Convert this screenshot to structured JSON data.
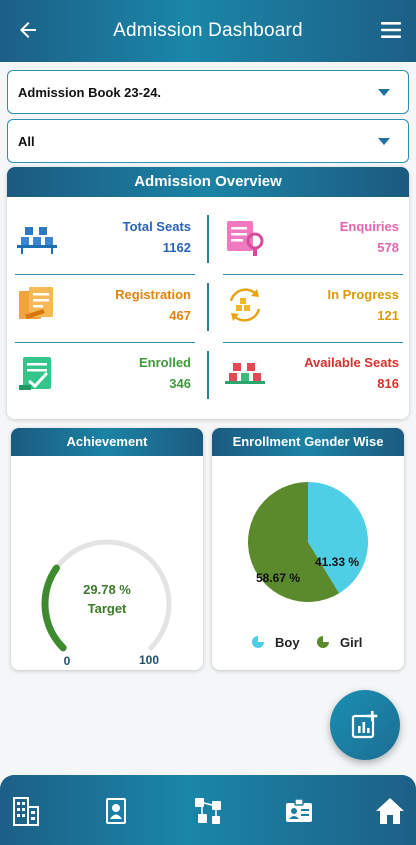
{
  "header": {
    "title": "Admission Dashboard",
    "back_icon": "back-arrow-icon",
    "menu_icon": "hamburger-menu-icon"
  },
  "filters": {
    "book": {
      "value": "Admission Book 23-24."
    },
    "scope": {
      "value": "All"
    }
  },
  "overview": {
    "title": "Admission Overview",
    "stats": [
      {
        "label": "Total Seats",
        "value": "1162",
        "color": "#2a62b8",
        "icon": "seats-icon"
      },
      {
        "label": "Enquiries",
        "value": "578",
        "color": "#e464b0",
        "icon": "enquiry-icon"
      },
      {
        "label": "Registration",
        "value": "467",
        "color": "#e0840f",
        "icon": "registration-icon"
      },
      {
        "label": "In Progress",
        "value": "121",
        "color": "#d99a06",
        "icon": "in-progress-icon"
      },
      {
        "label": "Enrolled",
        "value": "346",
        "color": "#3d9a3a",
        "icon": "enrolled-icon"
      },
      {
        "label": "Available Seats",
        "value": "816",
        "color": "#d8302a",
        "icon": "available-seats-icon"
      }
    ]
  },
  "achievement": {
    "title": "Achievement",
    "percent_text": "29.78 %",
    "target_label": "Target",
    "min": "0",
    "max": "100",
    "value": 29.78,
    "color": "#3d8b2e"
  },
  "gender": {
    "title": "Enrollment Gender Wise",
    "chart_data": {
      "type": "pie",
      "categories": [
        "Boy",
        "Girl"
      ],
      "values": [
        41.33,
        58.67
      ],
      "labels": [
        "41.33 %",
        "58.67 %"
      ],
      "colors": [
        "#4fcfe6",
        "#5a8a2b"
      ],
      "legend": "bottom"
    },
    "legend": [
      {
        "label": "Boy",
        "color": "#4fcfe6"
      },
      {
        "label": "Girl",
        "color": "#5a8a2b"
      }
    ]
  },
  "fab_icon": "add-chart-icon",
  "bottom_nav": [
    "building-icon",
    "id-card-icon",
    "people-network-icon",
    "badge-icon",
    "home-icon"
  ]
}
